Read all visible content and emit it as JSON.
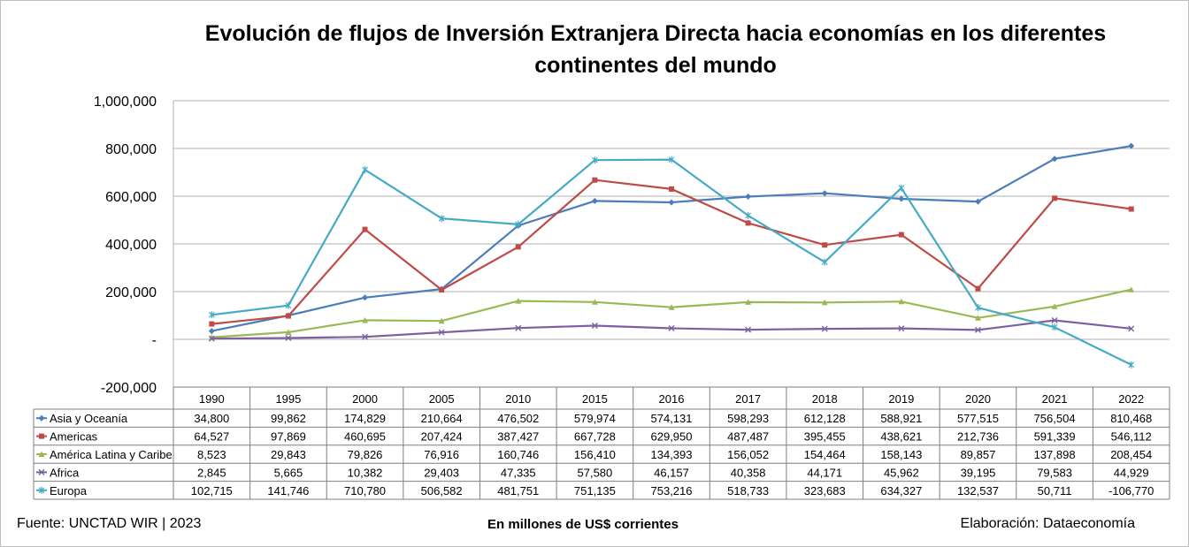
{
  "chart_data": {
    "type": "line",
    "title_line1": "Evolución de flujos de Inversión Extranjera Directa hacia economías en los diferentes",
    "title_line2": "continentes del mundo",
    "categories": [
      "1990",
      "1995",
      "2000",
      "2005",
      "2010",
      "2015",
      "2016",
      "2017",
      "2018",
      "2019",
      "2020",
      "2021",
      "2022"
    ],
    "y_tick_labels": [
      "1,000,000",
      "800,000",
      "600,000",
      "400,000",
      "200,000",
      "-",
      "-200,000"
    ],
    "ylim": [
      -200000,
      1000000
    ],
    "grid": true,
    "legend": "data table below chart",
    "series": [
      {
        "name": "Asia y Oceanía",
        "color": "#4a7ebb",
        "marker": "diamond",
        "values": [
          34800,
          99862,
          174829,
          210664,
          476502,
          579974,
          574131,
          598293,
          612128,
          588921,
          577515,
          756504,
          810468
        ],
        "labels": [
          "34,800",
          "99,862",
          "174,829",
          "210,664",
          "476,502",
          "579,974",
          "574,131",
          "598,293",
          "612,128",
          "588,921",
          "577,515",
          "756,504",
          "810,468"
        ]
      },
      {
        "name": "Americas",
        "color": "#be4b48",
        "marker": "square",
        "values": [
          64527,
          97869,
          460695,
          207424,
          387427,
          667728,
          629950,
          487487,
          395455,
          438621,
          212736,
          591339,
          546112
        ],
        "labels": [
          "64,527",
          "97,869",
          "460,695",
          "207,424",
          "387,427",
          "667,728",
          "629,950",
          "487,487",
          "395,455",
          "438,621",
          "212,736",
          "591,339",
          "546,112"
        ]
      },
      {
        "name": "América Latina y Caribe",
        "color": "#98b954",
        "marker": "triangle",
        "values": [
          8523,
          29843,
          79826,
          76916,
          160746,
          156410,
          134393,
          156052,
          154464,
          158143,
          89857,
          137898,
          208454
        ],
        "labels": [
          "8,523",
          "29,843",
          "79,826",
          "76,916",
          "160,746",
          "156,410",
          "134,393",
          "156,052",
          "154,464",
          "158,143",
          "89,857",
          "137,898",
          "208,454"
        ]
      },
      {
        "name": "Africa",
        "color": "#7d60a0",
        "marker": "x",
        "values": [
          2845,
          5665,
          10382,
          29403,
          47335,
          57580,
          46157,
          40358,
          44171,
          45962,
          39195,
          79583,
          44929
        ],
        "labels": [
          "2,845",
          "5,665",
          "10,382",
          "29,403",
          "47,335",
          "57,580",
          "46,157",
          "40,358",
          "44,171",
          "45,962",
          "39,195",
          "79,583",
          "44,929"
        ]
      },
      {
        "name": "Europa",
        "color": "#46aac5",
        "marker": "star",
        "values": [
          102715,
          141746,
          710780,
          506582,
          481751,
          751135,
          753216,
          518733,
          323683,
          634327,
          132537,
          50711,
          -106770
        ],
        "labels": [
          "102,715",
          "141,746",
          "710,780",
          "506,582",
          "481,751",
          "751,135",
          "753,216",
          "518,733",
          "323,683",
          "634,327",
          "132,537",
          "50,711",
          "-106,770"
        ]
      }
    ]
  },
  "footer": {
    "source": "Fuente: UNCTAD WIR | 2023",
    "units": "En millones de US$ corrientes",
    "credit": "Elaboración: Dataeconomía"
  }
}
